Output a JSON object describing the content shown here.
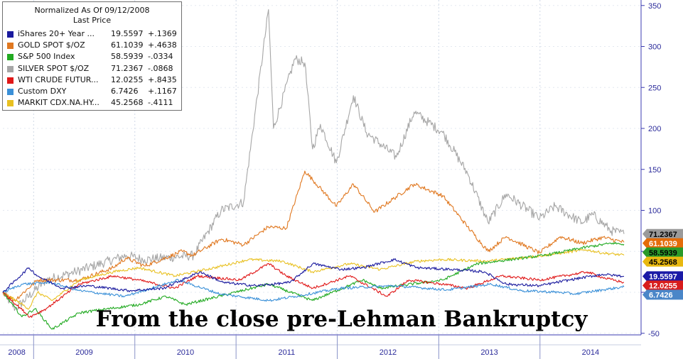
{
  "caption": "From the close pre-Lehman Bankruptcy",
  "legend": {
    "title": "Normalized As Of 09/12/2008",
    "subtitle": "Last Price",
    "position": "top-left"
  },
  "chart_data": {
    "type": "line",
    "title": "",
    "xlabel": "",
    "ylabel": "",
    "x_start": "2008-09-12",
    "x_end": "2014-10-31",
    "ylim": [
      -50,
      350
    ],
    "y_ticks": [
      -50,
      0,
      50,
      100,
      150,
      200,
      250,
      300,
      350
    ],
    "x_tick_labels": [
      "2008",
      "2009",
      "2010",
      "2011",
      "2012",
      "2013",
      "2014"
    ],
    "grid": true,
    "y_axis_side": "right",
    "series": [
      {
        "name": "iShares 20+ Year ...",
        "last_price": "19.5597",
        "change": "+.1369",
        "color": "#1a1a9e",
        "label_color": "#1a1aa6",
        "dates": [
          "2008-09-12",
          "2008-12-15",
          "2009-01-15",
          "2009-04-15",
          "2009-07-15",
          "2009-12-15",
          "2010-04-15",
          "2010-08-25",
          "2010-11-15",
          "2011-03-15",
          "2011-07-15",
          "2011-10-05",
          "2012-01-15",
          "2012-04-01",
          "2012-07-25",
          "2012-10-15",
          "2013-02-15",
          "2013-06-15",
          "2013-09-01",
          "2013-12-31",
          "2014-04-15",
          "2014-08-15",
          "2014-10-31"
        ],
        "values": [
          0,
          30,
          20,
          5,
          8,
          2,
          5,
          25,
          12,
          8,
          12,
          35,
          28,
          30,
          40,
          30,
          28,
          25,
          10,
          8,
          15,
          22,
          19.6
        ]
      },
      {
        "name": "GOLD SPOT $/OZ",
        "last_price": "61.1039",
        "change": "+.4638",
        "color": "#e07820",
        "label_color": "#e46c0a",
        "dates": [
          "2008-09-12",
          "2008-10-24",
          "2009-01-15",
          "2009-06-15",
          "2009-10-15",
          "2009-12-01",
          "2010-02-05",
          "2010-06-21",
          "2010-07-28",
          "2010-11-09",
          "2011-01-28",
          "2011-04-28",
          "2011-07-01",
          "2011-09-06",
          "2011-12-29",
          "2012-02-28",
          "2012-05-15",
          "2012-10-04",
          "2013-01-15",
          "2013-04-15",
          "2013-06-28",
          "2013-09-01",
          "2013-12-31",
          "2014-03-15",
          "2014-06-01",
          "2014-08-15",
          "2014-10-31"
        ],
        "values": [
          0,
          -10,
          15,
          15,
          30,
          42,
          32,
          50,
          45,
          65,
          58,
          80,
          78,
          148,
          105,
          132,
          98,
          132,
          118,
          80,
          50,
          68,
          48,
          68,
          60,
          67,
          61.1
        ]
      },
      {
        "name": "S&P 500 Index",
        "last_price": "58.5939",
        "change": "-.0334",
        "color": "#22aa22",
        "label_color": "#2a9a2a",
        "dates": [
          "2008-09-12",
          "2008-11-20",
          "2009-01-06",
          "2009-03-09",
          "2009-06-15",
          "2010-01-15",
          "2010-04-23",
          "2010-07-02",
          "2011-04-29",
          "2011-10-03",
          "2012-04-02",
          "2012-06-04",
          "2013-01-15",
          "2013-05-21",
          "2014-01-15",
          "2014-06-15",
          "2014-09-19",
          "2014-10-31"
        ],
        "values": [
          0,
          -30,
          -20,
          -45,
          -25,
          -15,
          -5,
          -15,
          10,
          -10,
          15,
          5,
          15,
          35,
          45,
          55,
          60,
          58.6
        ]
      },
      {
        "name": "SILVER SPOT $/OZ",
        "last_price": "71.2367",
        "change": "-.0868",
        "color": "#a6a6a6",
        "label_color": "#9a9a9a",
        "dates": [
          "2008-09-12",
          "2008-10-27",
          "2009-02-15",
          "2009-06-01",
          "2009-12-01",
          "2010-02-05",
          "2010-08-01",
          "2010-11-08",
          "2011-01-28",
          "2011-04-28",
          "2011-05-16",
          "2011-08-01",
          "2011-09-06",
          "2011-10-04",
          "2011-11-01",
          "2011-12-29",
          "2012-02-28",
          "2012-04-15",
          "2012-08-01",
          "2012-10-04",
          "2013-01-15",
          "2013-04-15",
          "2013-06-28",
          "2013-09-01",
          "2013-12-31",
          "2014-02-24",
          "2014-06-01",
          "2014-07-10",
          "2014-09-15",
          "2014-10-31"
        ],
        "values": [
          0,
          -20,
          15,
          25,
          45,
          40,
          45,
          100,
          110,
          345,
          200,
          285,
          280,
          175,
          205,
          158,
          240,
          195,
          165,
          220,
          195,
          145,
          85,
          120,
          90,
          105,
          85,
          95,
          75,
          71.2
        ]
      },
      {
        "name": "WTI CRUDE FUTUR...",
        "last_price": "12.0255",
        "change": "+.8435",
        "color": "#e01818",
        "label_color": "#d81c1c",
        "dates": [
          "2008-09-12",
          "2008-12-19",
          "2009-02-15",
          "2009-06-15",
          "2009-10-15",
          "2010-01-15",
          "2010-05-25",
          "2010-08-15",
          "2011-01-15",
          "2011-04-29",
          "2011-07-01",
          "2011-10-04",
          "2012-02-15",
          "2012-06-28",
          "2012-09-15",
          "2013-01-15",
          "2013-04-15",
          "2013-08-15",
          "2013-12-31",
          "2014-06-20",
          "2014-08-15",
          "2014-10-31"
        ],
        "values": [
          0,
          -30,
          -20,
          10,
          20,
          15,
          5,
          20,
          15,
          35,
          20,
          5,
          20,
          -5,
          15,
          10,
          5,
          20,
          15,
          25,
          18,
          12
        ]
      },
      {
        "name": "Custom DXY",
        "last_price": "6.7426",
        "change": "+.1167",
        "color": "#3a90d8",
        "label_color": "#4a86c8",
        "dates": [
          "2008-09-12",
          "2008-11-21",
          "2009-03-04",
          "2009-06-15",
          "2009-11-25",
          "2010-06-07",
          "2010-11-04",
          "2011-05-02",
          "2011-08-01",
          "2012-01-13",
          "2012-07-24",
          "2013-02-01",
          "2013-07-09",
          "2013-10-24",
          "2014-03-15",
          "2014-05-06",
          "2014-08-15",
          "2014-10-31"
        ],
        "values": [
          0,
          10,
          12,
          2,
          -5,
          15,
          -2,
          -10,
          -5,
          5,
          8,
          3,
          10,
          2,
          0,
          -2,
          3,
          6.7
        ]
      },
      {
        "name": "MARKIT CDX.NA.HY...",
        "last_price": "45.2568",
        "change": "-.4111",
        "color": "#e8c020",
        "label_color": "#e8b810",
        "dates": [
          "2008-09-12",
          "2008-12-15",
          "2009-01-15",
          "2009-03-09",
          "2009-06-15",
          "2009-10-15",
          "2010-01-15",
          "2010-05-25",
          "2010-10-15",
          "2011-02-15",
          "2011-06-15",
          "2011-10-04",
          "2012-02-15",
          "2012-06-04",
          "2012-10-15",
          "2013-01-15",
          "2013-06-24",
          "2014-01-15",
          "2014-06-15",
          "2014-08-15",
          "2014-10-31"
        ],
        "values": [
          0,
          -20,
          0,
          -10,
          15,
          25,
          30,
          20,
          30,
          40,
          38,
          25,
          35,
          28,
          38,
          40,
          38,
          45,
          52,
          48,
          45.3
        ]
      }
    ]
  }
}
